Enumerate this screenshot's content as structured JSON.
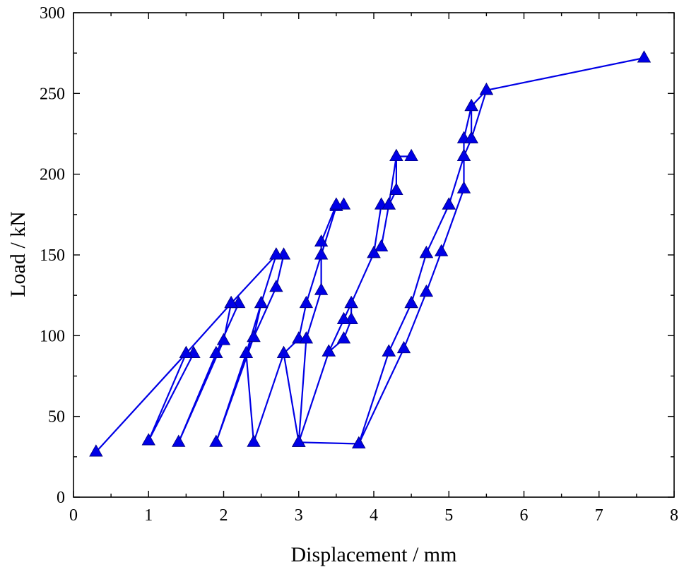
{
  "chart_data": {
    "type": "line",
    "title": "",
    "xlabel": "Displacement / mm",
    "ylabel": "Load / kN",
    "xlim": [
      0,
      8
    ],
    "ylim": [
      0,
      300
    ],
    "x_major_ticks": [
      0,
      1,
      2,
      3,
      4,
      5,
      6,
      7,
      8
    ],
    "y_major_ticks": [
      0,
      50,
      100,
      150,
      200,
      250,
      300
    ],
    "x_tick_labels": [
      "0",
      "1",
      "2",
      "3",
      "4",
      "5",
      "6",
      "7",
      "8"
    ],
    "y_tick_labels": [
      "0",
      "50",
      "100",
      "150",
      "200",
      "250",
      "300"
    ],
    "grid": false,
    "legend": "none",
    "marker": "triangle",
    "color": "#0000e6",
    "series": [
      {
        "x": [
          0.3,
          1.5,
          1.0,
          1.6,
          1.5,
          2.1,
          2.0,
          1.4,
          1.9,
          2.2,
          2.1,
          2.7,
          2.5,
          2.4,
          1.9,
          2.3,
          2.4,
          2.7,
          2.8,
          2.7,
          2.5,
          2.3,
          2.4,
          2.8,
          3.0,
          3.1,
          3.3,
          3.5,
          3.6,
          3.5,
          3.3,
          3.3,
          3.1,
          3.0,
          2.8,
          3.0,
          3.4,
          3.6,
          3.7,
          3.7,
          4.0,
          4.1,
          4.2,
          4.3,
          4.3,
          4.5,
          4.3,
          4.2,
          4.1,
          4.0,
          3.7,
          3.6,
          3.4,
          3.0,
          3.8,
          4.2,
          4.5,
          4.7,
          5.0,
          5.2,
          5.3,
          5.3,
          5.5,
          5.3,
          5.2,
          5.2,
          4.9,
          4.7,
          4.4,
          3.8,
          4.2,
          4.5,
          4.7,
          5.0,
          5.2,
          5.3,
          5.5,
          7.6
        ],
        "y": [
          28,
          89,
          35,
          89,
          89,
          120,
          97,
          34,
          89,
          120,
          120,
          150,
          120,
          99,
          34,
          89,
          99,
          130,
          150,
          150,
          120,
          89,
          34,
          89,
          98,
          120,
          150,
          180,
          181,
          181,
          158,
          128,
          98,
          34,
          89,
          34,
          90,
          98,
          110,
          120,
          151,
          181,
          181,
          190,
          211,
          211,
          211,
          181,
          155,
          151,
          120,
          110,
          90,
          34,
          33,
          90,
          120,
          151,
          181,
          211,
          222,
          242,
          252,
          242,
          222,
          191,
          152,
          127,
          92,
          33,
          90,
          120,
          151,
          181,
          211,
          222,
          252,
          272
        ]
      }
    ]
  }
}
